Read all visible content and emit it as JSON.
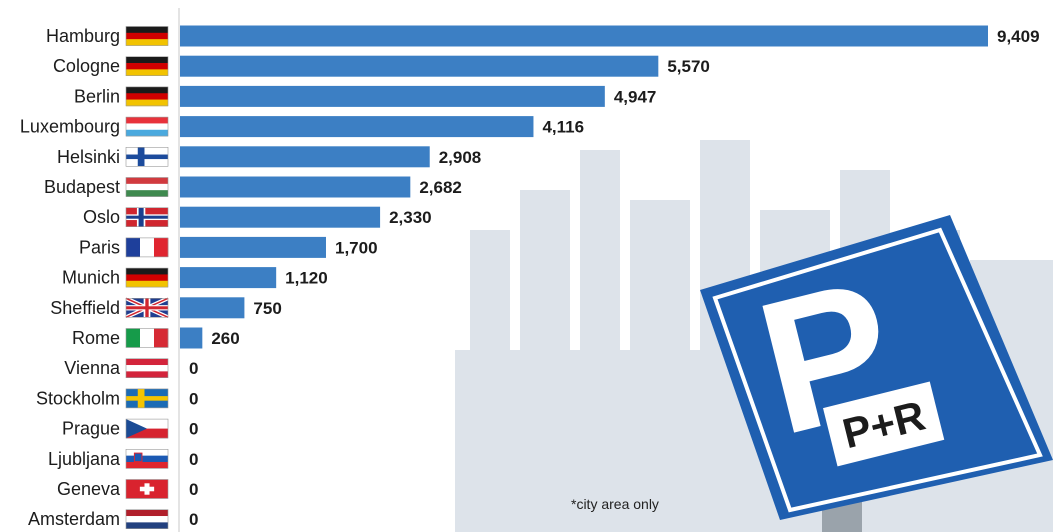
{
  "chart_data": {
    "type": "bar",
    "orientation": "horizontal",
    "categories": [
      "Hamburg",
      "Cologne",
      "Berlin",
      "Luxembourg",
      "Helsinki",
      "Budapest",
      "Oslo",
      "Paris",
      "Munich",
      "Sheffield",
      "Rome",
      "Vienna",
      "Stockholm",
      "Prague",
      "Ljubljana",
      "Geneva",
      "Amsterdam"
    ],
    "values": [
      9409,
      5570,
      4947,
      4116,
      2908,
      2682,
      2330,
      1700,
      1120,
      750,
      260,
      0,
      0,
      0,
      0,
      0,
      0
    ],
    "value_labels": [
      "9,409",
      "5,570",
      "4,947",
      "4,116",
      "2,908",
      "2,682",
      "2,330",
      "1,700",
      "1,120",
      "750",
      "260",
      "0",
      "0",
      "0",
      "0",
      "0",
      "0"
    ],
    "flags": [
      "germany",
      "germany",
      "germany",
      "luxembourg",
      "finland",
      "hungary",
      "norway",
      "france",
      "germany",
      "uk",
      "italy",
      "austria",
      "sweden",
      "czech",
      "slovenia",
      "switzerland",
      "netherlands"
    ],
    "xlim": [
      0,
      9409
    ],
    "bar_color": "#3c7fc4",
    "grid": false,
    "legend": "none"
  },
  "note": "*city area only",
  "sign": {
    "letter": "P",
    "badge": "P+R",
    "color": "#1f5fb0"
  }
}
